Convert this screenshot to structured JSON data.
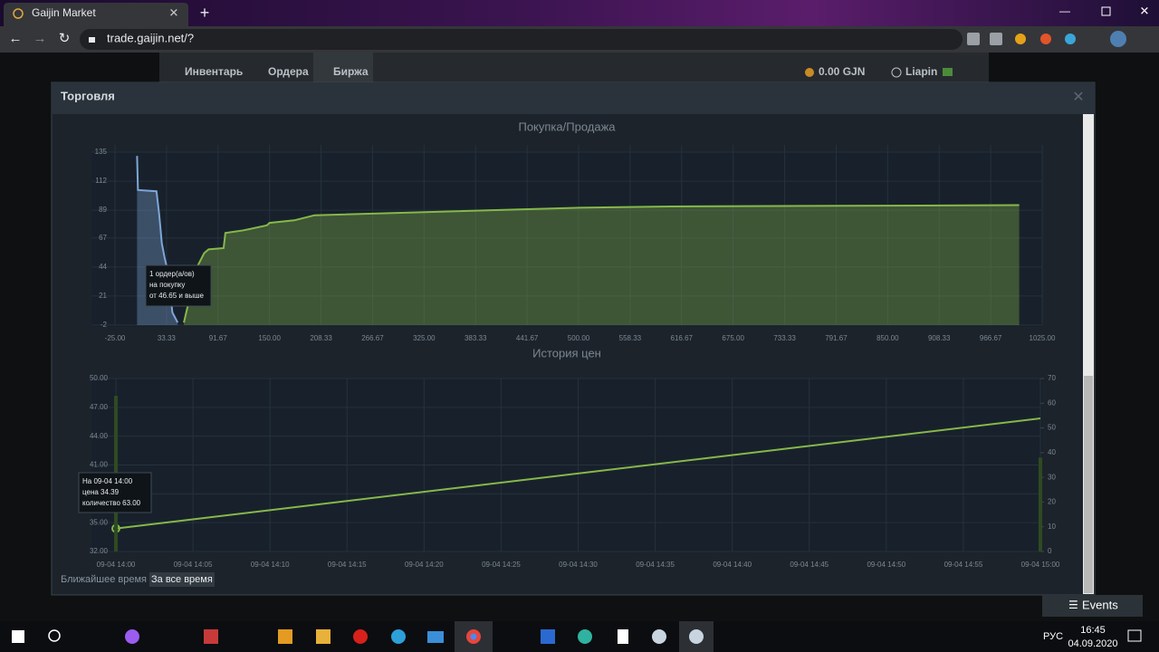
{
  "browser": {
    "tab_title": "Gaijin Market",
    "url": "trade.gaijin.net/?"
  },
  "site_nav": {
    "items": [
      "Инвентарь",
      "Ордера",
      "Биржа"
    ],
    "balance": "0.00 GJN",
    "user": "Liapin"
  },
  "modal": {
    "title": "Торговля",
    "buttons": [
      "Ближайшее время",
      "За все время"
    ]
  },
  "chart_data": [
    {
      "type": "area",
      "title": "Покупка/Продажа",
      "xlim": [
        -25,
        1025
      ],
      "xticks": [
        {
          "value": -25,
          "label": "-25.00"
        },
        {
          "value": 33.33,
          "label": "33.33"
        },
        {
          "value": 91.67,
          "label": "91.67"
        },
        {
          "value": 150,
          "label": "150.00"
        },
        {
          "value": 208.33,
          "label": "208.33"
        },
        {
          "value": 266.67,
          "label": "266.67"
        },
        {
          "value": 325,
          "label": "325.00"
        },
        {
          "value": 383.33,
          "label": "383.33"
        },
        {
          "value": 441.67,
          "label": "441.67"
        },
        {
          "value": 500,
          "label": "500.00"
        },
        {
          "value": 558.33,
          "label": "558.33"
        },
        {
          "value": 616.67,
          "label": "616.67"
        },
        {
          "value": 675,
          "label": "675.00"
        },
        {
          "value": 733.33,
          "label": "733.33"
        },
        {
          "value": 791.67,
          "label": "791.67"
        },
        {
          "value": 850,
          "label": "850.00"
        },
        {
          "value": 908.33,
          "label": "908.33"
        },
        {
          "value": 966.67,
          "label": "966.67"
        },
        {
          "value": 1025,
          "label": "1025.00"
        }
      ],
      "ylim": [
        -2,
        135
      ],
      "yticks": [
        -2,
        21,
        44,
        67,
        89,
        112,
        135
      ],
      "grid": true,
      "series": [
        {
          "color": "#7ea6d8",
          "x": [
            0,
            1,
            22,
            25,
            28,
            31,
            35,
            40,
            46
          ],
          "values": [
            132,
            105,
            104,
            86,
            63,
            52,
            40,
            8,
            0
          ]
        },
        {
          "color": "#86b84a",
          "x": [
            53,
            57,
            65,
            76,
            81,
            98,
            100,
            120,
            147,
            150,
            178,
            201,
            501,
            604,
            999
          ],
          "values": [
            0,
            12,
            40,
            55,
            58,
            59,
            71,
            73,
            77,
            79,
            81,
            85,
            91,
            92,
            93
          ]
        }
      ],
      "tooltip": [
        "1 ордер(а/ов)",
        "на покупку",
        "от 46.65 и выше"
      ]
    },
    {
      "type": "line",
      "title": "История цен",
      "x": [
        "09-04 14:00",
        "09-04 15:00"
      ],
      "xlim": [
        "09-04 14:00",
        "09-04 15:00"
      ],
      "xticks": [
        "09-04 14:00",
        "09-04 14:05",
        "09-04 14:10",
        "09-04 14:15",
        "09-04 14:20",
        "09-04 14:25",
        "09-04 14:30",
        "09-04 14:35",
        "09-04 14:40",
        "09-04 14:45",
        "09-04 14:50",
        "09-04 14:55",
        "09-04 15:00"
      ],
      "ylim": [
        32,
        50
      ],
      "yticks": [
        {
          "value": 32,
          "label": "32.00"
        },
        {
          "value": 35,
          "label": "35.00"
        },
        {
          "value": 38,
          "label": "38.00"
        },
        {
          "value": 41,
          "label": "41.00"
        },
        {
          "value": 44,
          "label": "44.00"
        },
        {
          "value": 47,
          "label": "47.00"
        },
        {
          "value": 50,
          "label": "50.00"
        }
      ],
      "y2lim": [
        0,
        70
      ],
      "y2ticks": [
        0,
        10,
        20,
        30,
        40,
        50,
        60,
        70
      ],
      "grid": true,
      "series": [
        {
          "color": "#86b84a",
          "values": [
            34.39,
            45.85
          ]
        },
        {
          "type": "bar",
          "axis": "y2",
          "color": "#2f4a22",
          "values": [
            63,
            38
          ]
        }
      ],
      "tooltip": [
        "На 09-04 14:00",
        "цена 34.39",
        "количество 63.00"
      ]
    }
  ],
  "events_button": "Events",
  "taskbar": {
    "language": "РУС",
    "time": "16:45",
    "date": "04.09.2020"
  }
}
